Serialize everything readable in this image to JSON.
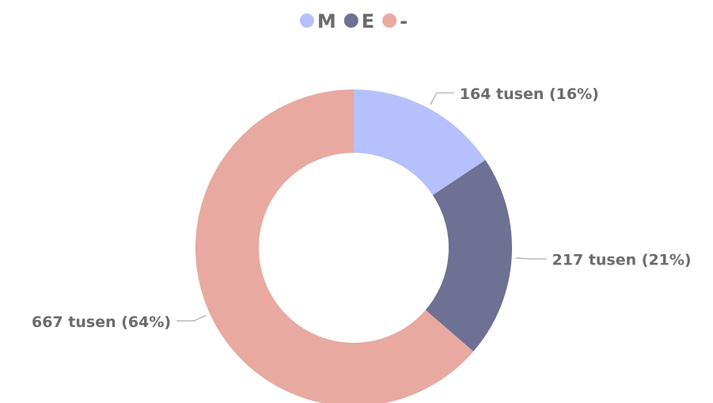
{
  "chart_data": {
    "type": "donut",
    "categories": [
      "M",
      "E",
      "-"
    ],
    "values": [
      164,
      217,
      667
    ],
    "value_labels": [
      "164 tusen (16%)",
      "217 tusen (21%)",
      "667 tusen (64%)"
    ],
    "colors": [
      "#b6c0fc",
      "#6e7094",
      "#e8a9a0"
    ],
    "legend": "top"
  }
}
